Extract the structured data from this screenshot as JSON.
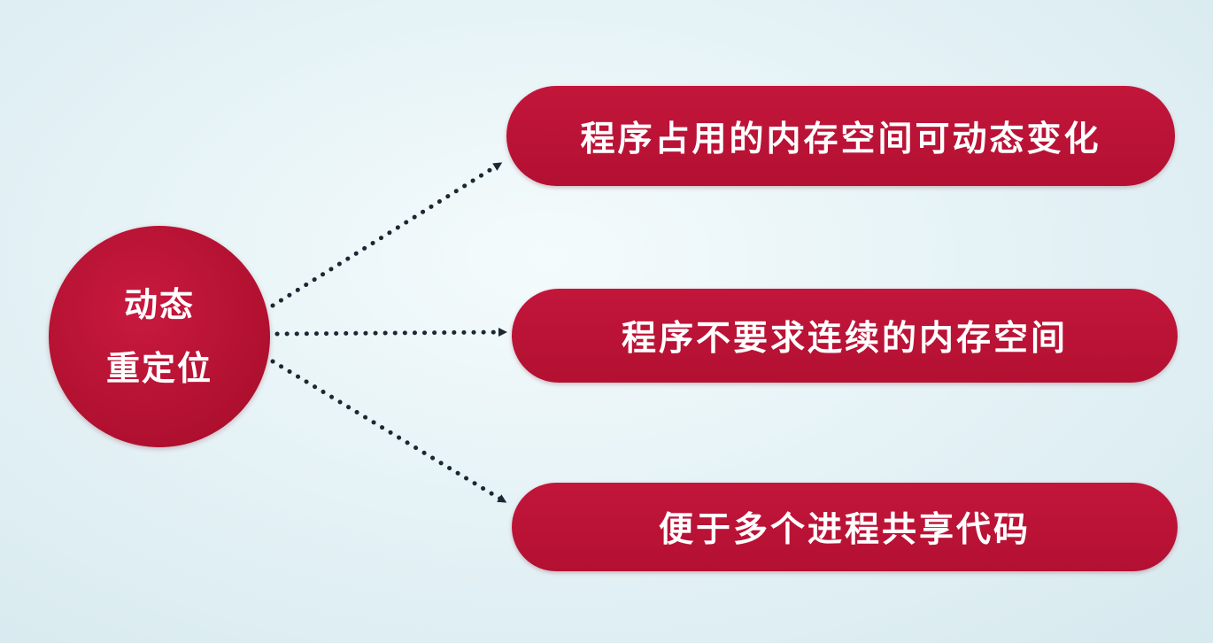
{
  "center": {
    "line1": "动态",
    "line2": "重定位"
  },
  "items": [
    {
      "label": "程序占用的内存空间可动态变化"
    },
    {
      "label": "程序不要求连续的内存空间"
    },
    {
      "label": "便于多个进程共享代码"
    }
  ],
  "colors": {
    "node_fill": "#b8122f",
    "connector": "#1c2733",
    "text": "#ffffff",
    "background": "#e6f3f6"
  }
}
